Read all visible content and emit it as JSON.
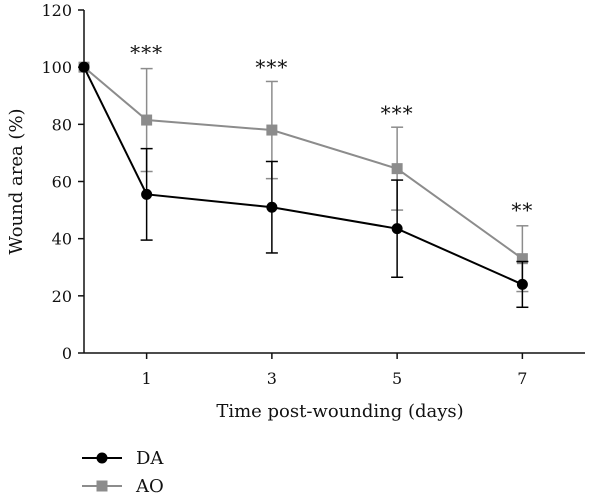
{
  "chart_data": {
    "type": "line",
    "title": "",
    "xlabel": "Time post-wounding (days)",
    "ylabel": "Wound area (%)",
    "xlim": [
      0,
      8
    ],
    "ylim": [
      0,
      120
    ],
    "x_ticks": [
      1,
      3,
      5,
      7
    ],
    "y_ticks": [
      0,
      20,
      40,
      60,
      80,
      100,
      120
    ],
    "grid": false,
    "legend_position": "bottom-left",
    "series": [
      {
        "name": "DA",
        "color": "#000000",
        "marker": "circle",
        "x": [
          0,
          1,
          3,
          5,
          7
        ],
        "y": [
          100,
          55.5,
          51,
          43.5,
          24
        ],
        "error": [
          0,
          16,
          16,
          17,
          8
        ]
      },
      {
        "name": "AO",
        "color": "#8c8c8c",
        "marker": "square",
        "x": [
          0,
          1,
          3,
          5,
          7
        ],
        "y": [
          100,
          81.5,
          78,
          64.5,
          33
        ],
        "error": [
          0,
          18,
          17,
          14.5,
          11.5
        ]
      }
    ],
    "annotations": [
      {
        "x": 1,
        "text": "***",
        "y": 104
      },
      {
        "x": 3,
        "text": "***",
        "y": 99
      },
      {
        "x": 5,
        "text": "***",
        "y": 83
      },
      {
        "x": 7,
        "text": "**",
        "y": 49
      }
    ]
  }
}
